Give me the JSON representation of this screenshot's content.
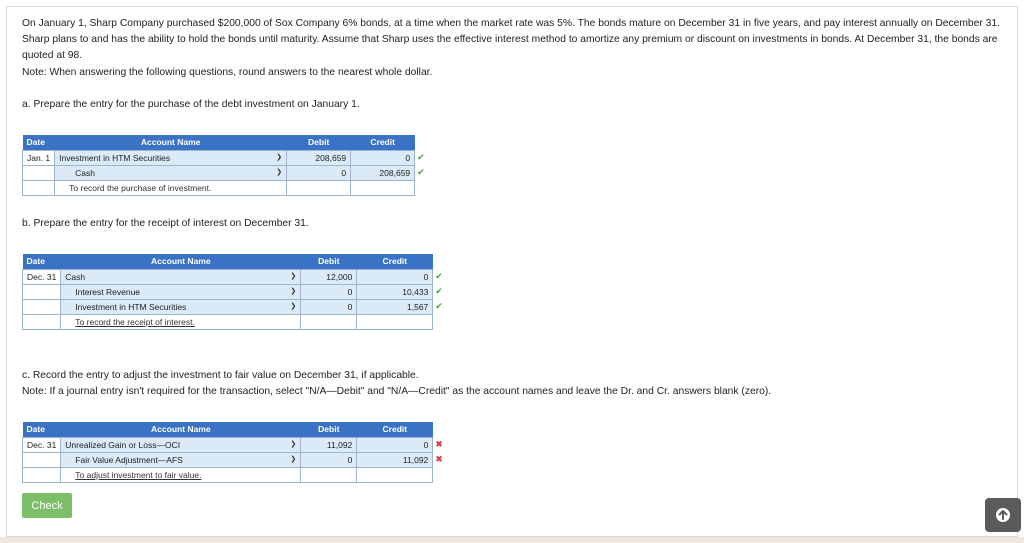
{
  "problem": {
    "intro": "On January 1, Sharp Company purchased $200,000 of Sox Company 6% bonds, at a time when the market rate was 5%. The bonds mature on December 31 in five years, and pay interest annually on December 31. Sharp plans to and has the ability to hold the bonds until maturity. Assume that Sharp uses the effective interest method to amortize any premium or discount on investments in bonds. At December 31, the bonds are quoted at 98.",
    "note": "Note: When answering the following questions, round answers to the nearest whole dollar."
  },
  "part_a": {
    "question": "a. Prepare the entry for the purchase of the debt investment on January 1.",
    "headers": {
      "date": "Date",
      "account": "Account Name",
      "debit": "Debit",
      "credit": "Credit"
    },
    "rows": [
      {
        "date": "Jan. 1",
        "account": "Investment in HTM Securities",
        "debit": "208,659",
        "credit": "0",
        "status": "correct"
      },
      {
        "date": "",
        "account": "Cash",
        "debit": "0",
        "credit": "208,659",
        "status": "correct"
      }
    ],
    "memo": "To record the purchase of investment."
  },
  "part_b": {
    "question": "b. Prepare the entry for the receipt of interest on December 31.",
    "headers": {
      "date": "Date",
      "account": "Account Name",
      "debit": "Debit",
      "credit": "Credit"
    },
    "rows": [
      {
        "date": "Dec. 31",
        "account": "Cash",
        "debit": "12,000",
        "credit": "0",
        "status": "correct"
      },
      {
        "date": "",
        "account": "Interest Revenue",
        "debit": "0",
        "credit": "10,433",
        "status": "correct"
      },
      {
        "date": "",
        "account": "Investment in HTM Securities",
        "debit": "0",
        "credit": "1,567",
        "status": "correct"
      }
    ],
    "memo": "To record the receipt of interest."
  },
  "part_c": {
    "question": "c. Record the entry to adjust the investment to fair value on December 31, if applicable.",
    "note": "Note: If a journal entry isn't required for the transaction, select \"N/A—Debit\" and \"N/A—Credit\" as the account names and leave the Dr. and Cr. answers blank (zero).",
    "headers": {
      "date": "Date",
      "account": "Account Name",
      "debit": "Debit",
      "credit": "Credit"
    },
    "rows": [
      {
        "date": "Dec. 31",
        "account": "Unrealized Gain or Loss—OCI",
        "debit": "11,092",
        "credit": "0",
        "status": "incorrect"
      },
      {
        "date": "",
        "account": "Fair Value Adjustment—AFS",
        "debit": "0",
        "credit": "11,092",
        "status": "incorrect"
      }
    ],
    "memo": "To adjust investment to fair value."
  },
  "buttons": {
    "check": "Check"
  },
  "icons": {
    "dropdown": "chevron-down-icon",
    "correct": "check-icon",
    "incorrect": "x-icon",
    "scroll_up": "arrow-up-icon"
  },
  "colors": {
    "header": "#3a72c6",
    "input": "#daeaf6",
    "correct": "#3aa63a",
    "incorrect": "#dd3333",
    "check_button": "#7cbf68"
  }
}
